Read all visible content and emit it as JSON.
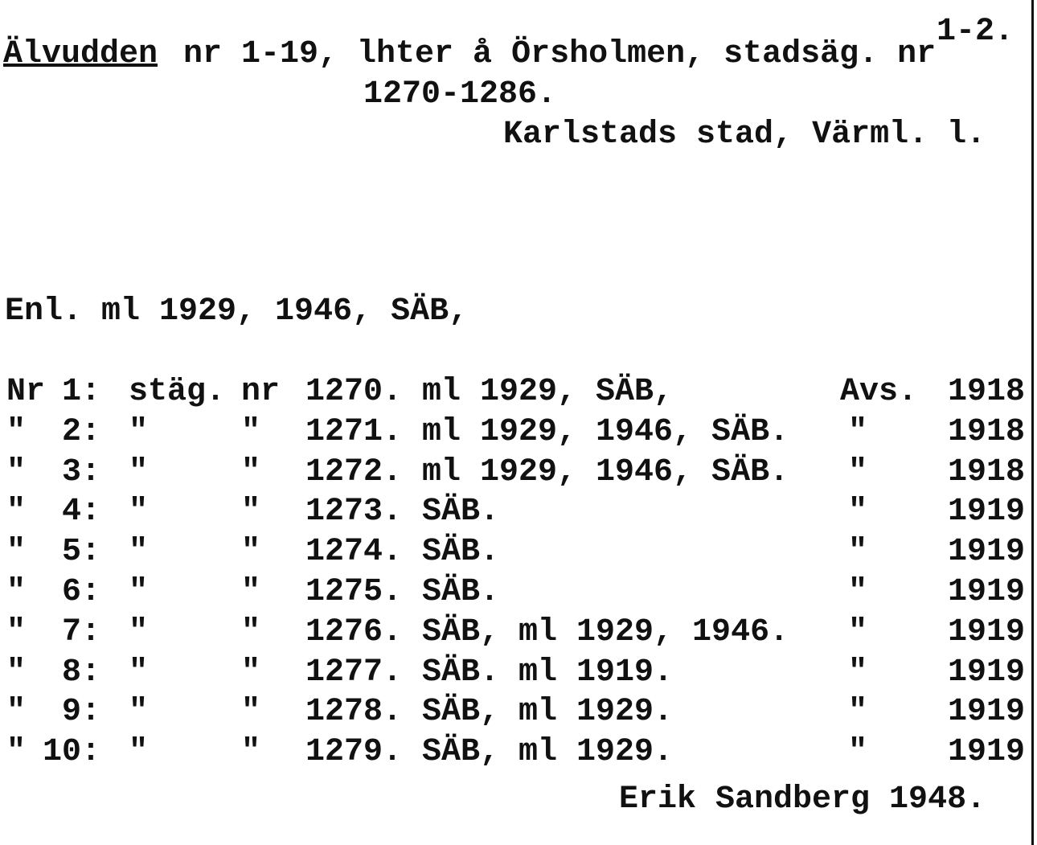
{
  "header": {
    "page_number": "1-2.",
    "title": "Älvudden",
    "title_rest": "nr 1-19, lhter å Örsholmen, stadsäg. nr",
    "title_line2": "1270-1286.",
    "location": "Karlstads stad, Värml. l."
  },
  "sources": "Enl. ml 1929, 1946, SÄB,",
  "table": {
    "rows": [
      [
        "Nr",
        "1:",
        "stäg.",
        "nr",
        "1270.",
        "ml 1929, SÄB,",
        "Avs.",
        "1918"
      ],
      [
        "\"",
        "2:",
        "\"",
        "\"",
        "1271.",
        "ml 1929, 1946, SÄB.",
        "\"",
        "1918"
      ],
      [
        "\"",
        "3:",
        "\"",
        "\"",
        "1272.",
        "ml 1929, 1946, SÄB.",
        "\"",
        "1918"
      ],
      [
        "\"",
        "4:",
        "\"",
        "\"",
        "1273.",
        "SÄB.",
        "\"",
        "1919"
      ],
      [
        "\"",
        "5:",
        "\"",
        "\"",
        "1274.",
        "SÄB.",
        "\"",
        "1919"
      ],
      [
        "\"",
        "6:",
        "\"",
        "\"",
        "1275.",
        "SÄB.",
        "\"",
        "1919"
      ],
      [
        "\"",
        "7:",
        "\"",
        "\"",
        "1276.",
        "SÄB, ml 1929, 1946.",
        "\"",
        "1919"
      ],
      [
        "\"",
        "8:",
        "\"",
        "\"",
        "1277.",
        "SÄB. ml 1919.",
        "\"",
        "1919"
      ],
      [
        "\"",
        "9:",
        "\"",
        "\"",
        "1278.",
        "SÄB, ml 1929.",
        "\"",
        "1919"
      ],
      [
        "\"",
        "10:",
        "\"",
        "\"",
        "1279.",
        "SÄB, ml 1929.",
        "\"",
        "1919"
      ]
    ]
  },
  "signature": "Erik Sandberg 1948."
}
